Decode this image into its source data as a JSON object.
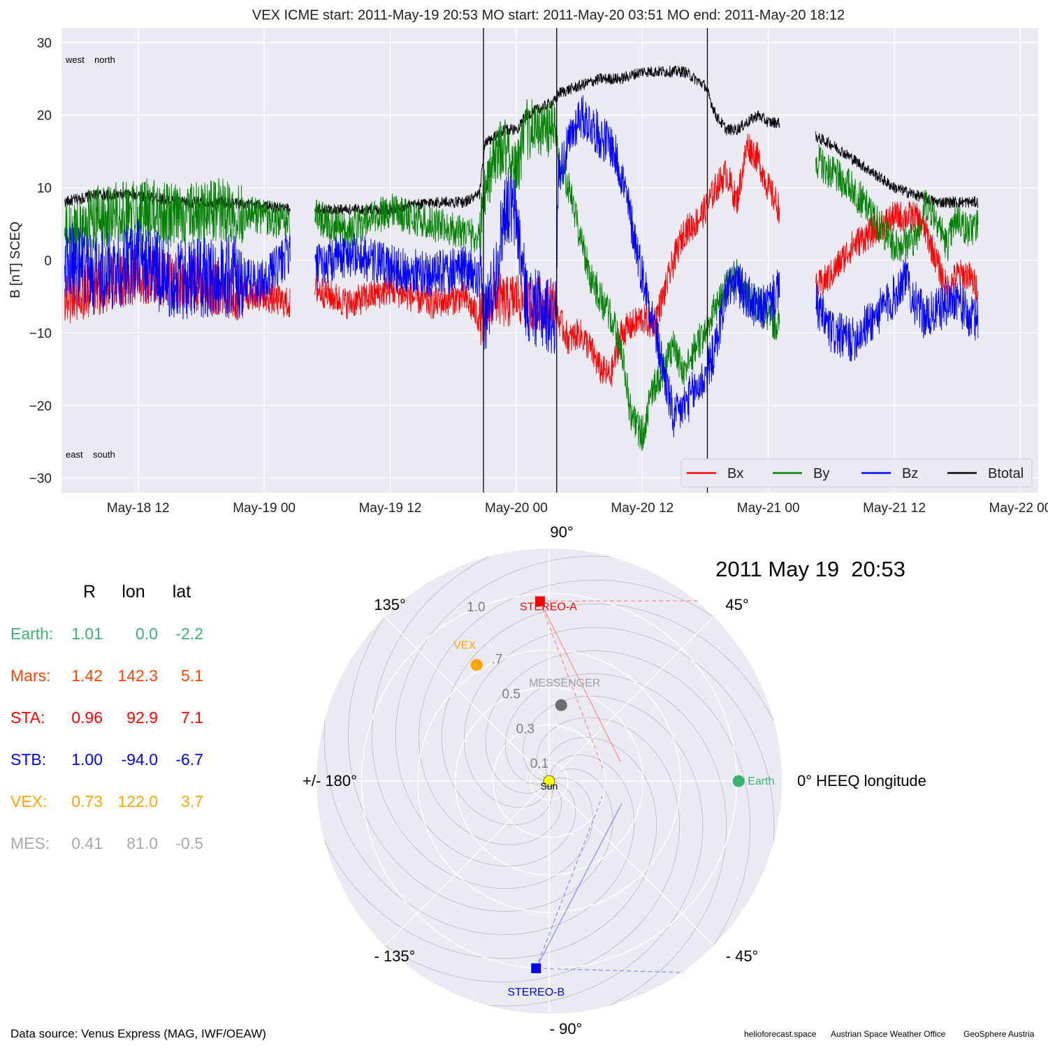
{
  "top_chart": {
    "title": "VEX    ICME start: 2011-May-19 20:53   MO start: 2011-May-20 03:51   MO end: 2011-May-20 18:12",
    "ylabel": "B [nT] SCEQ",
    "corner_labels": {
      "top_left": "west    north",
      "bottom_left": "east    south"
    }
  },
  "chart_data": [
    {
      "type": "line",
      "ylabel": "B [nT] SCEQ",
      "ylim": [
        -32,
        32
      ],
      "xlim_hours_from_may18_00": [
        4.7,
        97.7
      ],
      "y_ticks": [
        30,
        20,
        10,
        0,
        -10,
        -20,
        -30
      ],
      "y_tick_labels": [
        "30",
        "20",
        "10",
        "0",
        "−10",
        "−20",
        "−30"
      ],
      "x_ticks": [
        {
          "label": "May-18 12",
          "hour": 12
        },
        {
          "label": "May-19 00",
          "hour": 24
        },
        {
          "label": "May-19 12",
          "hour": 36
        },
        {
          "label": "May-20 00",
          "hour": 48
        },
        {
          "label": "May-20 12",
          "hour": 60
        },
        {
          "label": "May-21 00",
          "hour": 72
        },
        {
          "label": "May-21 12",
          "hour": 84
        },
        {
          "label": "May-22 00",
          "hour": 96
        }
      ],
      "event_lines": [
        {
          "name": "ICME start",
          "hour": 44.88
        },
        {
          "name": "MO start",
          "hour": 51.85
        },
        {
          "name": "MO end",
          "hour": 66.2
        }
      ],
      "grid": true,
      "legend_position": "bottom-right",
      "data_gaps_hours": [
        [
          26.5,
          28.8
        ],
        [
          73.1,
          76.5
        ],
        [
          92.0,
          97.2
        ]
      ],
      "series": [
        {
          "name": "Bx",
          "color": "#ff0000",
          "points": [
            [
              5,
              -5
            ],
            [
              8,
              -4
            ],
            [
              12,
              -2
            ],
            [
              16,
              -3
            ],
            [
              20,
              -4
            ],
            [
              24,
              -5
            ],
            [
              26.4,
              -6
            ],
            [
              29,
              -4
            ],
            [
              32,
              -6
            ],
            [
              36,
              -4
            ],
            [
              40,
              -6
            ],
            [
              43,
              -5
            ],
            [
              44.5,
              -8
            ],
            [
              45,
              -8
            ],
            [
              46,
              -5
            ],
            [
              47,
              -6
            ],
            [
              48,
              -5
            ],
            [
              49,
              -6
            ],
            [
              51.8,
              -6
            ],
            [
              52,
              -8
            ],
            [
              53,
              -11
            ],
            [
              54,
              -10
            ],
            [
              55,
              -12
            ],
            [
              56,
              -15
            ],
            [
              57,
              -16
            ],
            [
              58,
              -10
            ],
            [
              60,
              -8
            ],
            [
              61,
              -9
            ],
            [
              62,
              -5
            ],
            [
              63,
              0
            ],
            [
              64,
              4
            ],
            [
              65,
              5
            ],
            [
              66,
              7
            ],
            [
              67,
              10
            ],
            [
              68,
              12
            ],
            [
              69,
              8
            ],
            [
              70,
              16
            ],
            [
              71,
              14
            ],
            [
              72,
              10
            ],
            [
              73.1,
              7
            ],
            [
              76.5,
              -4
            ],
            [
              78,
              -2
            ],
            [
              80,
              2
            ],
            [
              82,
              4
            ],
            [
              84,
              6
            ],
            [
              86,
              6
            ],
            [
              87,
              4
            ],
            [
              88,
              0
            ],
            [
              89,
              -4
            ],
            [
              90,
              -2
            ],
            [
              91,
              -2
            ],
            [
              92,
              -4
            ],
            [
              97.2,
              -4
            ]
          ]
        },
        {
          "name": "By",
          "color": "#008000",
          "points": [
            [
              5,
              3
            ],
            [
              8,
              6
            ],
            [
              12,
              7
            ],
            [
              16,
              6
            ],
            [
              20,
              7
            ],
            [
              24,
              6
            ],
            [
              26.4,
              5
            ],
            [
              29,
              6
            ],
            [
              32,
              4
            ],
            [
              36,
              7
            ],
            [
              40,
              5
            ],
            [
              43,
              4
            ],
            [
              44.5,
              3
            ],
            [
              45,
              10
            ],
            [
              46,
              14
            ],
            [
              47,
              16
            ],
            [
              48,
              12
            ],
            [
              49,
              18
            ],
            [
              51.8,
              18
            ],
            [
              52,
              14
            ],
            [
              53,
              10
            ],
            [
              54,
              4
            ],
            [
              55,
              -2
            ],
            [
              56,
              -5
            ],
            [
              57,
              -8
            ],
            [
              58,
              -12
            ],
            [
              59,
              -22
            ],
            [
              60,
              -24
            ],
            [
              61,
              -18
            ],
            [
              62,
              -15
            ],
            [
              63,
              -12
            ],
            [
              64,
              -16
            ],
            [
              65,
              -12
            ],
            [
              66,
              -10
            ],
            [
              67,
              -6
            ],
            [
              68,
              -4
            ],
            [
              69,
              -2
            ],
            [
              70,
              -5
            ],
            [
              71,
              -6
            ],
            [
              72,
              -8
            ],
            [
              73.1,
              -9
            ],
            [
              76.5,
              14
            ],
            [
              78,
              12
            ],
            [
              80,
              10
            ],
            [
              82,
              6
            ],
            [
              84,
              2
            ],
            [
              86,
              3
            ],
            [
              87,
              8
            ],
            [
              88,
              6
            ],
            [
              89,
              2
            ],
            [
              90,
              6
            ],
            [
              91,
              4
            ],
            [
              92,
              5
            ],
            [
              97.2,
              6
            ]
          ]
        },
        {
          "name": "Bz",
          "color": "#0000ff",
          "points": [
            [
              5,
              0
            ],
            [
              8,
              -2
            ],
            [
              12,
              0
            ],
            [
              16,
              -3
            ],
            [
              20,
              -2
            ],
            [
              24,
              -3
            ],
            [
              26.4,
              1
            ],
            [
              29,
              -1
            ],
            [
              32,
              1
            ],
            [
              36,
              -1
            ],
            [
              40,
              -2
            ],
            [
              43,
              -1
            ],
            [
              44.5,
              -3
            ],
            [
              45,
              -8
            ],
            [
              46,
              -2
            ],
            [
              47,
              8
            ],
            [
              48,
              6
            ],
            [
              49,
              -6
            ],
            [
              51.8,
              -8
            ],
            [
              52,
              12
            ],
            [
              53,
              16
            ],
            [
              54,
              20
            ],
            [
              55,
              19
            ],
            [
              56,
              17
            ],
            [
              57,
              16
            ],
            [
              58,
              12
            ],
            [
              59,
              5
            ],
            [
              60,
              -2
            ],
            [
              61,
              -8
            ],
            [
              62,
              -15
            ],
            [
              63,
              -22
            ],
            [
              64,
              -20
            ],
            [
              65,
              -18
            ],
            [
              66,
              -16
            ],
            [
              67,
              -12
            ],
            [
              68,
              -4
            ],
            [
              69,
              -3
            ],
            [
              70,
              -5
            ],
            [
              71,
              -7
            ],
            [
              72,
              -6
            ],
            [
              73.1,
              -4
            ],
            [
              76.5,
              -6
            ],
            [
              78,
              -10
            ],
            [
              80,
              -11
            ],
            [
              82,
              -8
            ],
            [
              84,
              -5
            ],
            [
              85,
              -2
            ],
            [
              86,
              -6
            ],
            [
              87,
              -8
            ],
            [
              88,
              -7
            ],
            [
              89,
              -6
            ],
            [
              90,
              -5
            ],
            [
              91,
              -8
            ],
            [
              92,
              -8
            ],
            [
              97.2,
              -7
            ]
          ]
        },
        {
          "name": "Btotal",
          "color": "#000000",
          "points": [
            [
              5,
              8
            ],
            [
              8,
              9
            ],
            [
              12,
              9
            ],
            [
              16,
              8
            ],
            [
              20,
              8
            ],
            [
              24,
              7.5
            ],
            [
              26.4,
              7
            ],
            [
              29,
              7
            ],
            [
              32,
              7
            ],
            [
              36,
              7
            ],
            [
              40,
              8
            ],
            [
              43,
              8
            ],
            [
              44.5,
              9
            ],
            [
              45,
              16
            ],
            [
              46,
              17
            ],
            [
              47,
              18
            ],
            [
              48,
              18
            ],
            [
              49,
              20
            ],
            [
              51.8,
              22
            ],
            [
              52,
              23
            ],
            [
              54,
              24
            ],
            [
              56,
              25
            ],
            [
              58,
              25
            ],
            [
              60,
              26
            ],
            [
              62,
              26
            ],
            [
              64,
              26
            ],
            [
              66,
              24
            ],
            [
              67,
              20
            ],
            [
              68,
              18
            ],
            [
              69,
              18
            ],
            [
              70,
              19
            ],
            [
              71,
              20
            ],
            [
              72,
              19
            ],
            [
              73.1,
              19
            ],
            [
              76.5,
              17
            ],
            [
              78,
              16
            ],
            [
              80,
              14
            ],
            [
              82,
              12
            ],
            [
              84,
              10
            ],
            [
              86,
              9
            ],
            [
              88,
              8
            ],
            [
              90,
              8
            ],
            [
              91,
              8
            ],
            [
              92,
              8
            ],
            [
              97.2,
              8
            ]
          ]
        }
      ]
    },
    {
      "type": "scatter",
      "subtype": "polar",
      "title": "2011 May 19  20:53",
      "radial_ticks": [
        0.1,
        0.3,
        0.5,
        0.7,
        1.0
      ],
      "radial_tick_labels": [
        "0.1",
        "0.3",
        "0.5",
        ".7",
        "1.0"
      ],
      "angle_labels": [
        {
          "deg": 0,
          "label": "0° HEEQ longitude"
        },
        {
          "deg": 45,
          "label": "45°"
        },
        {
          "deg": 90,
          "label": "90°"
        },
        {
          "deg": 135,
          "label": "135°"
        },
        {
          "deg": 180,
          "label": "+/- 180°"
        },
        {
          "deg": -135,
          "label": "- 135°"
        },
        {
          "deg": -90,
          "label": "- 90°"
        },
        {
          "deg": -45,
          "label": "- 45°"
        }
      ],
      "points": [
        {
          "name": "Sun",
          "r": 0.0,
          "lon": 0.0,
          "color": "#ffff00",
          "marker": "circle",
          "label_color": "#000000"
        },
        {
          "name": "Earth",
          "r": 1.01,
          "lon": 0.0,
          "color": "#3cb371",
          "marker": "circle",
          "label_color": "#3cb371"
        },
        {
          "name": "STEREO-A",
          "r": 0.96,
          "lon": 92.9,
          "color": "#ff0000",
          "marker": "square",
          "label_color": "#ff0000"
        },
        {
          "name": "STEREO-B",
          "r": 1.0,
          "lon": -94.0,
          "color": "#0000ff",
          "marker": "square",
          "label_color": "#0000ff"
        },
        {
          "name": "VEX",
          "r": 0.73,
          "lon": 122.0,
          "color": "#ffa500",
          "marker": "circle",
          "label_color": "#ffa500"
        },
        {
          "name": "MESSENGER",
          "r": 0.41,
          "lon": 81.0,
          "color": "#6e6e6e",
          "marker": "circle",
          "label_color": "#a0a0a0"
        }
      ]
    }
  ],
  "legend": [
    {
      "name": "Bx",
      "color": "#ff0000"
    },
    {
      "name": "By",
      "color": "#008000"
    },
    {
      "name": "Bz",
      "color": "#0000ff"
    },
    {
      "name": "Btotal",
      "color": "#000000"
    }
  ],
  "position_table": {
    "headers": [
      "R",
      "lon",
      "lat"
    ],
    "rows": [
      {
        "name": "Earth:",
        "R": "1.01",
        "lon": "0.0",
        "lat": "-2.2",
        "color": "#3cb371"
      },
      {
        "name": "Mars:",
        "R": "1.42",
        "lon": "142.3",
        "lat": "5.1",
        "color": "#ff4500"
      },
      {
        "name": "STA:",
        "R": "0.96",
        "lon": "92.9",
        "lat": "7.1",
        "color": "#ff0000"
      },
      {
        "name": "STB:",
        "R": "1.00",
        "lon": "-94.0",
        "lat": "-6.7",
        "color": "#0000ff"
      },
      {
        "name": "VEX:",
        "R": "0.73",
        "lon": "122.0",
        "lat": "3.7",
        "color": "#ffa500"
      },
      {
        "name": "MES:",
        "R": "0.41",
        "lon": "81.0",
        "lat": "-0.5",
        "color": "#a9a9a9"
      }
    ]
  },
  "footer": {
    "data_source": "Data source: Venus Express (MAG, IWF/OEAW)",
    "credits": [
      "helioforecast.space",
      "Austrian Space Weather Office",
      "GeoSphere Austria"
    ]
  }
}
